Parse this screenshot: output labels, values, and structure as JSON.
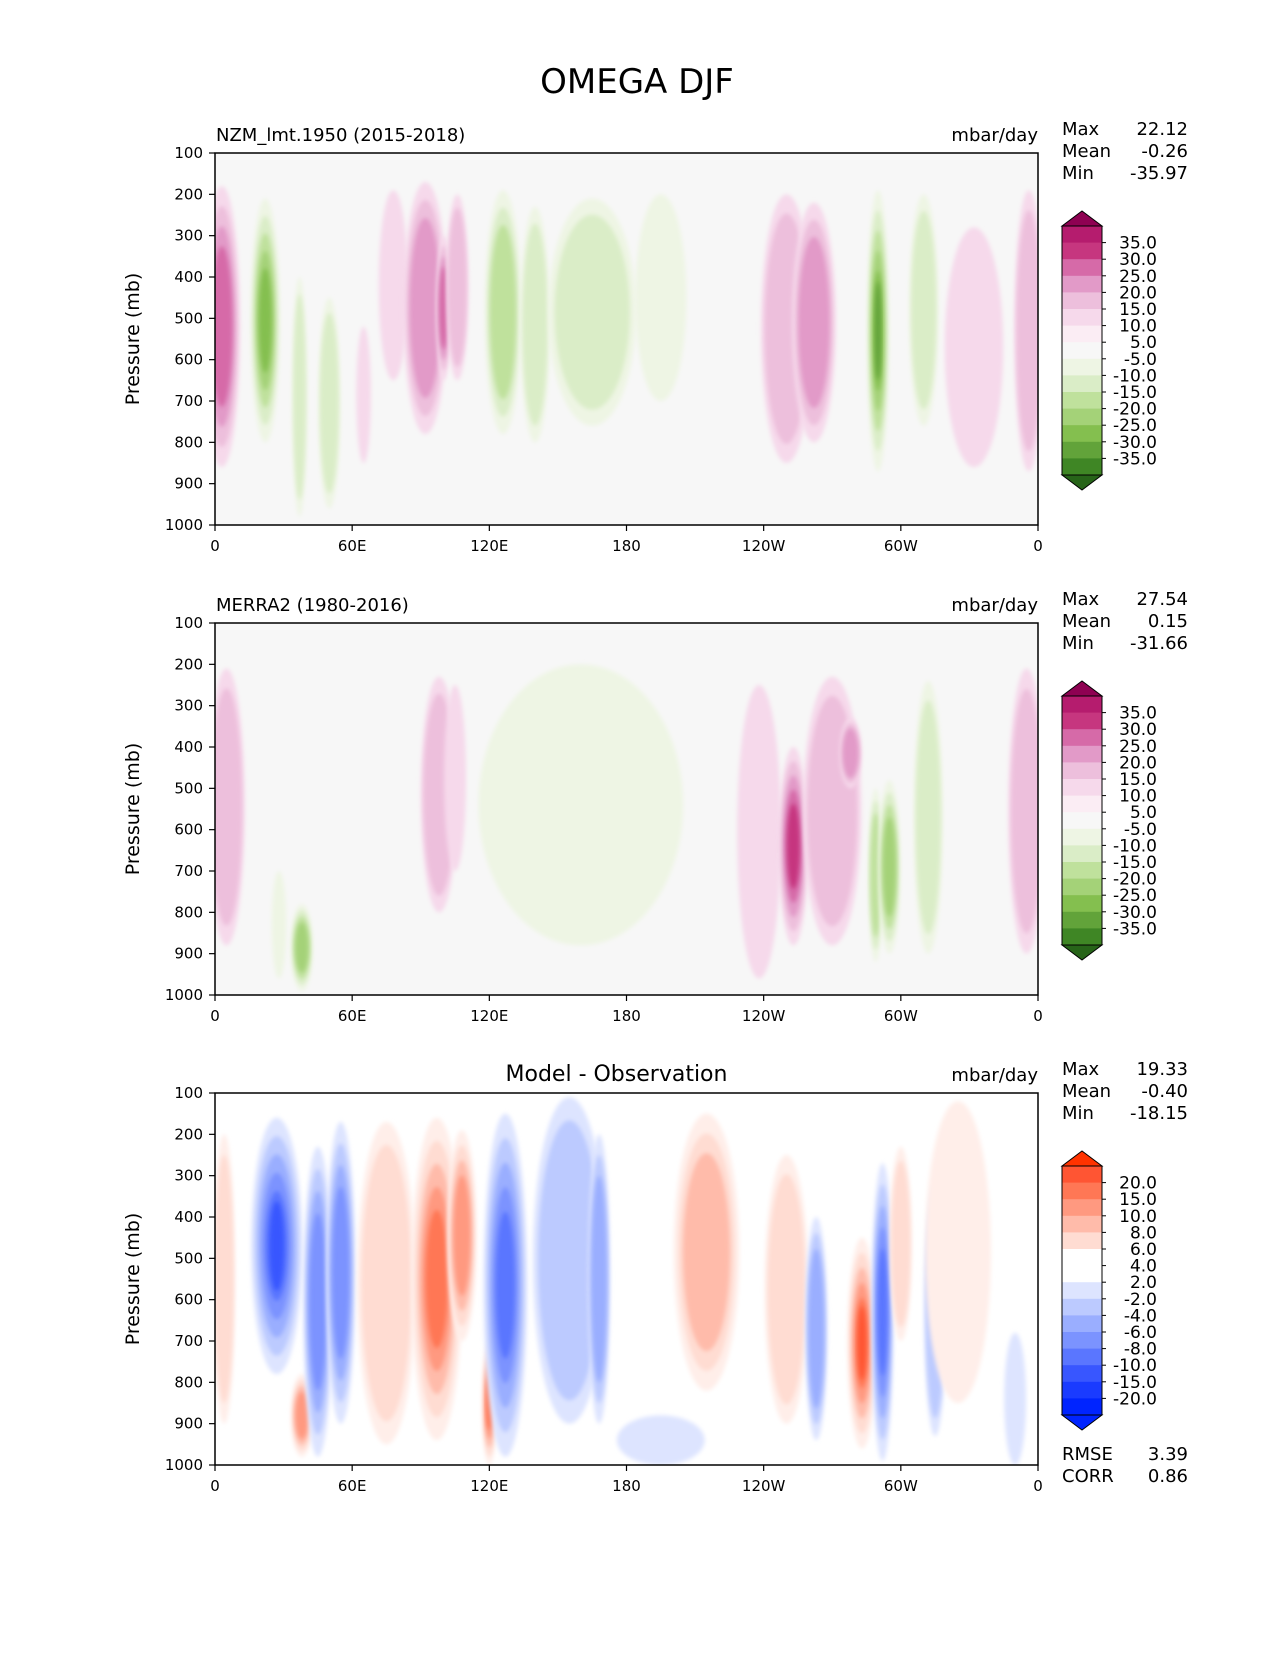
{
  "figure": {
    "title": "OMEGA DJF"
  },
  "chart_data": [
    {
      "type": "heatmap",
      "title": "NZM_lmt.1950 (2015-2018)",
      "units": "mbar/day",
      "ylabel": "Pressure (mb)",
      "xlabel": "",
      "x_ticks": [
        "0",
        "60E",
        "120E",
        "180",
        "120W",
        "60W",
        "0"
      ],
      "y_ticks": [
        "100",
        "200",
        "300",
        "400",
        "500",
        "600",
        "700",
        "800",
        "900",
        "1000"
      ],
      "xlim": [
        0,
        360
      ],
      "ylim": [
        1000,
        100
      ],
      "stats": [
        {
          "label": "Max",
          "value": "22.12"
        },
        {
          "label": "Mean",
          "value": "-0.26"
        },
        {
          "label": "Min",
          "value": "-35.97"
        }
      ],
      "colorbar": {
        "labels": [
          "35.0",
          "30.0",
          "25.0",
          "20.0",
          "15.0",
          "10.0",
          "5.0",
          "-5.0",
          "-10.0",
          "-15.0",
          "-20.0",
          "-25.0",
          "-30.0",
          "-35.0"
        ],
        "colors": [
          "#8e0152",
          "#b51c6e",
          "#c6367f",
          "#d66aa8",
          "#e29ac8",
          "#edbfdc",
          "#f6d9eb",
          "#fbedf4",
          "#f7f7f7",
          "#eef5e4",
          "#daedc7",
          "#bfe19c",
          "#a4d278",
          "#84bf4f",
          "#62a33a",
          "#3f8625",
          "#276419"
        ],
        "extend_top": "#8e0152",
        "extend_bottom": "#276419"
      },
      "features": [
        {
          "lon": 3,
          "width": 5,
          "p_top": 180,
          "p_bot": 860,
          "value": 22
        },
        {
          "lon": 22,
          "width": 4,
          "p_top": 210,
          "p_bot": 800,
          "value": -25
        },
        {
          "lon": 37,
          "width": 2,
          "p_top": 400,
          "p_bot": 980,
          "value": -12
        },
        {
          "lon": 50,
          "width": 3,
          "p_top": 450,
          "p_bot": 960,
          "value": -12
        },
        {
          "lon": 65,
          "width": 2,
          "p_top": 520,
          "p_bot": 850,
          "value": 8
        },
        {
          "lon": 78,
          "width": 4,
          "p_top": 190,
          "p_bot": 650,
          "value": 8
        },
        {
          "lon": 92,
          "width": 6,
          "p_top": 170,
          "p_bot": 780,
          "value": 15
        },
        {
          "lon": 100,
          "width": 2,
          "p_top": 300,
          "p_bot": 650,
          "value": 22
        },
        {
          "lon": 106,
          "width": 3,
          "p_top": 200,
          "p_bot": 650,
          "value": 12
        },
        {
          "lon": 126,
          "width": 5,
          "p_top": 190,
          "p_bot": 780,
          "value": -16
        },
        {
          "lon": 140,
          "width": 4,
          "p_top": 230,
          "p_bot": 800,
          "value": -12
        },
        {
          "lon": 165,
          "width": 12,
          "p_top": 210,
          "p_bot": 760,
          "value": -12
        },
        {
          "lon": 195,
          "width": 7,
          "p_top": 200,
          "p_bot": 700,
          "value": -8
        },
        {
          "lon": 250,
          "width": 7,
          "p_top": 200,
          "p_bot": 850,
          "value": 14
        },
        {
          "lon": 262,
          "width": 6,
          "p_top": 220,
          "p_bot": 800,
          "value": 17
        },
        {
          "lon": 290,
          "width": 3,
          "p_top": 190,
          "p_bot": 870,
          "value": -30
        },
        {
          "lon": 310,
          "width": 4,
          "p_top": 200,
          "p_bot": 760,
          "value": -14
        },
        {
          "lon": 332,
          "width": 8,
          "p_top": 280,
          "p_bot": 860,
          "value": 7
        },
        {
          "lon": 356,
          "width": 4,
          "p_top": 190,
          "p_bot": 870,
          "value": 14
        }
      ]
    },
    {
      "type": "heatmap",
      "title": "MERRA2 (1980-2016)",
      "units": "mbar/day",
      "ylabel": "Pressure (mb)",
      "xlabel": "",
      "x_ticks": [
        "0",
        "60E",
        "120E",
        "180",
        "120W",
        "60W",
        "0"
      ],
      "y_ticks": [
        "100",
        "200",
        "300",
        "400",
        "500",
        "600",
        "700",
        "800",
        "900",
        "1000"
      ],
      "xlim": [
        0,
        360
      ],
      "ylim": [
        1000,
        100
      ],
      "stats": [
        {
          "label": "Max",
          "value": "27.54"
        },
        {
          "label": "Mean",
          "value": "0.15"
        },
        {
          "label": "Min",
          "value": "-31.66"
        }
      ],
      "colorbar": {
        "labels": [
          "35.0",
          "30.0",
          "25.0",
          "20.0",
          "15.0",
          "10.0",
          "5.0",
          "-5.0",
          "-10.0",
          "-15.0",
          "-20.0",
          "-25.0",
          "-30.0",
          "-35.0"
        ],
        "colors": [
          "#8e0152",
          "#b51c6e",
          "#c6367f",
          "#d66aa8",
          "#e29ac8",
          "#edbfdc",
          "#f6d9eb",
          "#fbedf4",
          "#f7f7f7",
          "#eef5e4",
          "#daedc7",
          "#bfe19c",
          "#a4d278",
          "#84bf4f",
          "#62a33a",
          "#3f8625",
          "#276419"
        ],
        "extend_top": "#8e0152",
        "extend_bottom": "#276419"
      },
      "features": [
        {
          "lon": 5,
          "width": 5,
          "p_top": 210,
          "p_bot": 880,
          "value": 12
        },
        {
          "lon": 38,
          "width": 3,
          "p_top": 780,
          "p_bot": 990,
          "value": -20
        },
        {
          "lon": 28,
          "width": 2,
          "p_top": 700,
          "p_bot": 960,
          "value": -8
        },
        {
          "lon": 98,
          "width": 5,
          "p_top": 230,
          "p_bot": 800,
          "value": 12
        },
        {
          "lon": 105,
          "width": 3,
          "p_top": 250,
          "p_bot": 700,
          "value": 7
        },
        {
          "lon": 160,
          "width": 28,
          "p_top": 200,
          "p_bot": 880,
          "value": -7
        },
        {
          "lon": 238,
          "width": 6,
          "p_top": 250,
          "p_bot": 960,
          "value": 8
        },
        {
          "lon": 253,
          "width": 4,
          "p_top": 400,
          "p_bot": 880,
          "value": 25
        },
        {
          "lon": 270,
          "width": 8,
          "p_top": 230,
          "p_bot": 880,
          "value": 12
        },
        {
          "lon": 278,
          "width": 3,
          "p_top": 330,
          "p_bot": 500,
          "value": 18
        },
        {
          "lon": 289,
          "width": 2,
          "p_top": 500,
          "p_bot": 920,
          "value": -18
        },
        {
          "lon": 295,
          "width": 3,
          "p_top": 480,
          "p_bot": 900,
          "value": -22
        },
        {
          "lon": 312,
          "width": 4,
          "p_top": 240,
          "p_bot": 900,
          "value": -12
        },
        {
          "lon": 355,
          "width": 5,
          "p_top": 210,
          "p_bot": 900,
          "value": 12
        }
      ]
    },
    {
      "type": "heatmap",
      "title": "Model - Observation",
      "units": "mbar/day",
      "ylabel": "Pressure (mb)",
      "xlabel": "",
      "x_ticks": [
        "0",
        "60E",
        "120E",
        "180",
        "120W",
        "60W",
        "0"
      ],
      "y_ticks": [
        "100",
        "200",
        "300",
        "400",
        "500",
        "600",
        "700",
        "800",
        "900",
        "1000"
      ],
      "xlim": [
        0,
        360
      ],
      "ylim": [
        1000,
        100
      ],
      "stats": [
        {
          "label": "Max",
          "value": "19.33"
        },
        {
          "label": "Mean",
          "value": "-0.40"
        },
        {
          "label": "Min",
          "value": "-18.15"
        }
      ],
      "extra_stats": [
        {
          "label": "RMSE",
          "value": "3.39"
        },
        {
          "label": "CORR",
          "value": "0.86"
        }
      ],
      "colorbar": {
        "labels": [
          "20.0",
          "15.0",
          "10.0",
          "8.0",
          "6.0",
          "4.0",
          "2.0",
          "-2.0",
          "-4.0",
          "-6.0",
          "-8.0",
          "-10.0",
          "-15.0",
          "-20.0"
        ],
        "colors": [
          "#ff3300",
          "#ff5533",
          "#ff7755",
          "#ff9980",
          "#ffbbaa",
          "#ffdcd2",
          "#ffffff",
          "#ffffff",
          "#dde4ff",
          "#bccaff",
          "#9aaeff",
          "#7b93ff",
          "#5a76ff",
          "#3856ff",
          "#1a3bff",
          "#0024ff",
          "#0024ff"
        ],
        "extend_top": "#ff3300",
        "extend_bottom": "#0024ff"
      },
      "features": [
        {
          "lon": 4,
          "width": 3,
          "p_top": 200,
          "p_bot": 900,
          "value": 4
        },
        {
          "lon": 27,
          "width": 7,
          "p_top": 160,
          "p_bot": 780,
          "value": -17
        },
        {
          "lon": 38,
          "width": 3,
          "p_top": 780,
          "p_bot": 980,
          "value": 8
        },
        {
          "lon": 45,
          "width": 4,
          "p_top": 230,
          "p_bot": 980,
          "value": -9
        },
        {
          "lon": 55,
          "width": 4,
          "p_top": 170,
          "p_bot": 900,
          "value": -9
        },
        {
          "lon": 75,
          "width": 8,
          "p_top": 170,
          "p_bot": 950,
          "value": 5
        },
        {
          "lon": 97,
          "width": 7,
          "p_top": 160,
          "p_bot": 940,
          "value": 13
        },
        {
          "lon": 108,
          "width": 4,
          "p_top": 190,
          "p_bot": 700,
          "value": 9
        },
        {
          "lon": 120,
          "width": 2,
          "p_top": 700,
          "p_bot": 1000,
          "value": 14
        },
        {
          "lon": 127,
          "width": 6,
          "p_top": 150,
          "p_bot": 980,
          "value": -13
        },
        {
          "lon": 155,
          "width": 10,
          "p_top": 110,
          "p_bot": 900,
          "value": -4
        },
        {
          "lon": 168,
          "width": 3,
          "p_top": 200,
          "p_bot": 900,
          "value": -7
        },
        {
          "lon": 195,
          "width": 12,
          "p_top": 880,
          "p_bot": 1000,
          "value": -3
        },
        {
          "lon": 215,
          "width": 9,
          "p_top": 150,
          "p_bot": 820,
          "value": 6
        },
        {
          "lon": 250,
          "width": 6,
          "p_top": 250,
          "p_bot": 900,
          "value": 5
        },
        {
          "lon": 263,
          "width": 3,
          "p_top": 400,
          "p_bot": 940,
          "value": -6
        },
        {
          "lon": 283,
          "width": 4,
          "p_top": 450,
          "p_bot": 960,
          "value": 15
        },
        {
          "lon": 292,
          "width": 3,
          "p_top": 270,
          "p_bot": 990,
          "value": -13
        },
        {
          "lon": 300,
          "width": 3,
          "p_top": 230,
          "p_bot": 700,
          "value": 5
        },
        {
          "lon": 315,
          "width": 3,
          "p_top": 320,
          "p_bot": 930,
          "value": -5
        },
        {
          "lon": 325,
          "width": 9,
          "p_top": 120,
          "p_bot": 850,
          "value": 3
        },
        {
          "lon": 350,
          "width": 3,
          "p_top": 680,
          "p_bot": 1000,
          "value": -3
        }
      ]
    }
  ]
}
